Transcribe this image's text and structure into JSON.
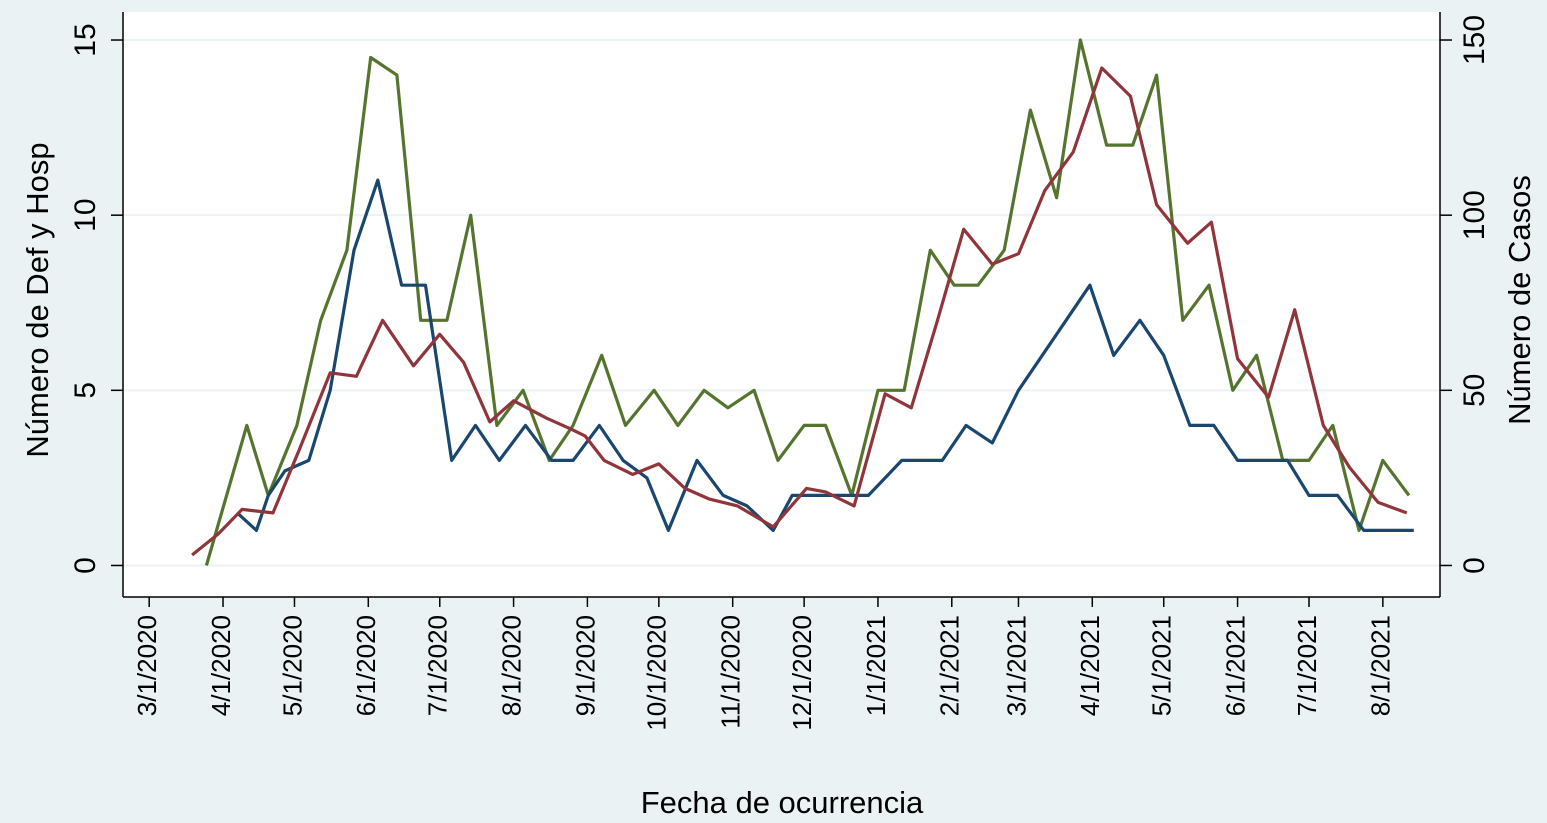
{
  "chart_data": {
    "type": "line",
    "x_label": "Fecha de ocurrencia",
    "y_label": "Número de Def y Hosp",
    "y2_label": "Número de Casos",
    "xlim": [
      "2020-02-19",
      "2021-08-25"
    ],
    "xticks": [
      {
        "value": "2020-03-01",
        "label": "3/1/2020"
      },
      {
        "value": "2020-04-01",
        "label": "4/1/2020"
      },
      {
        "value": "2020-05-01",
        "label": "5/1/2020"
      },
      {
        "value": "2020-06-01",
        "label": "6/1/2020"
      },
      {
        "value": "2020-07-01",
        "label": "7/1/2020"
      },
      {
        "value": "2020-08-01",
        "label": "8/1/2020"
      },
      {
        "value": "2020-09-01",
        "label": "9/1/2020"
      },
      {
        "value": "2020-10-01",
        "label": "10/1/2020"
      },
      {
        "value": "2020-11-01",
        "label": "11/1/2020"
      },
      {
        "value": "2020-12-01",
        "label": "12/1/2020"
      },
      {
        "value": "2021-01-01",
        "label": "1/1/2021"
      },
      {
        "value": "2021-02-01",
        "label": "2/1/2021"
      },
      {
        "value": "2021-03-01",
        "label": "3/1/2021"
      },
      {
        "value": "2021-04-01",
        "label": "4/1/2021"
      },
      {
        "value": "2021-05-01",
        "label": "5/1/2021"
      },
      {
        "value": "2021-06-01",
        "label": "6/1/2021"
      },
      {
        "value": "2021-07-01",
        "label": "7/1/2021"
      },
      {
        "value": "2021-08-01",
        "label": "8/1/2021"
      }
    ],
    "ylim": [
      -0.9,
      15.8
    ],
    "yticks": [
      0,
      5,
      10,
      15
    ],
    "y2lim": [
      -9,
      158
    ],
    "y2ticks": [
      0,
      50,
      100,
      150
    ],
    "grid": true,
    "series": [
      {
        "color": "#55752f",
        "axis": "y",
        "x": [
          "2020-03-25",
          "2020-04-11",
          "2020-04-20",
          "2020-05-02",
          "2020-05-12",
          "2020-05-23",
          "2020-06-02",
          "2020-06-13",
          "2020-06-23",
          "2020-07-04",
          "2020-07-14",
          "2020-07-25",
          "2020-08-05",
          "2020-08-16",
          "2020-08-26",
          "2020-09-07",
          "2020-09-17",
          "2020-09-29",
          "2020-10-09",
          "2020-10-20",
          "2020-10-30",
          "2020-11-10",
          "2020-11-20",
          "2020-12-01",
          "2020-12-10",
          "2020-12-21",
          "2021-01-01",
          "2021-01-12",
          "2021-01-23",
          "2021-02-02",
          "2021-02-12",
          "2021-02-23",
          "2021-03-06",
          "2021-03-17",
          "2021-03-27",
          "2021-04-07",
          "2021-04-18",
          "2021-04-28",
          "2021-05-09",
          "2021-05-20",
          "2021-05-30",
          "2021-06-09",
          "2021-06-20",
          "2021-07-01",
          "2021-07-11",
          "2021-07-22",
          "2021-08-01",
          "2021-08-12"
        ],
        "values": [
          0,
          4,
          2,
          4,
          7,
          9,
          14.5,
          14,
          7,
          7,
          10,
          4,
          5,
          3,
          4,
          6,
          4,
          5,
          4,
          5,
          4.5,
          5,
          3,
          4,
          4,
          2,
          5,
          5,
          9,
          8,
          8,
          9,
          13,
          10.5,
          15,
          12,
          12,
          14,
          7,
          8,
          5,
          6,
          3,
          3,
          4,
          1,
          3,
          2
        ]
      },
      {
        "color": "#1a476f",
        "axis": "y",
        "x": [
          "2020-04-07",
          "2020-04-15",
          "2020-04-20",
          "2020-04-27",
          "2020-05-07",
          "2020-05-16",
          "2020-05-26",
          "2020-06-05",
          "2020-06-15",
          "2020-06-25",
          "2020-07-06",
          "2020-07-16",
          "2020-07-26",
          "2020-08-06",
          "2020-08-17",
          "2020-08-26",
          "2020-09-06",
          "2020-09-16",
          "2020-09-26",
          "2020-10-05",
          "2020-10-17",
          "2020-10-28",
          "2020-11-07",
          "2020-11-18",
          "2020-11-26",
          "2020-12-06",
          "2020-12-18",
          "2020-12-28",
          "2021-01-11",
          "2021-01-28",
          "2021-02-07",
          "2021-02-18",
          "2021-03-01",
          "2021-03-11",
          "2021-03-21",
          "2021-03-31",
          "2021-04-10",
          "2021-04-21",
          "2021-05-01",
          "2021-05-12",
          "2021-05-22",
          "2021-06-01",
          "2021-06-11",
          "2021-06-22",
          "2021-07-01",
          "2021-07-13",
          "2021-07-24",
          "2021-08-04",
          "2021-08-14"
        ],
        "values": [
          1.5,
          1,
          2,
          2.7,
          3,
          5,
          9,
          11,
          8,
          8,
          3,
          4,
          3,
          4,
          3,
          3,
          4,
          3,
          2.5,
          1,
          3,
          2,
          1.7,
          1,
          2,
          2,
          2,
          2,
          3,
          3,
          4,
          3.5,
          5,
          6,
          7,
          8,
          6,
          7,
          6,
          4,
          4,
          3,
          3,
          3,
          2,
          2,
          1,
          1,
          1
        ]
      },
      {
        "color": "#90353b",
        "axis": "y2",
        "x": [
          "2020-03-19",
          "2020-03-30",
          "2020-04-09",
          "2020-04-22",
          "2020-05-03",
          "2020-05-16",
          "2020-05-27",
          "2020-06-07",
          "2020-06-20",
          "2020-07-01",
          "2020-07-11",
          "2020-07-22",
          "2020-08-01",
          "2020-08-15",
          "2020-08-25",
          "2020-08-31",
          "2020-09-08",
          "2020-09-20",
          "2020-10-01",
          "2020-10-12",
          "2020-10-22",
          "2020-11-03",
          "2020-11-18",
          "2020-12-02",
          "2020-12-10",
          "2020-12-22",
          "2021-01-04",
          "2021-01-15",
          "2021-01-26",
          "2021-02-06",
          "2021-02-18",
          "2021-03-01",
          "2021-03-12",
          "2021-03-24",
          "2021-04-05",
          "2021-04-17",
          "2021-04-28",
          "2021-05-11",
          "2021-05-21",
          "2021-06-01",
          "2021-06-14",
          "2021-06-25",
          "2021-07-07",
          "2021-07-18",
          "2021-07-30",
          "2021-08-11"
        ],
        "values": [
          3,
          9,
          16,
          15,
          33,
          55,
          54,
          70,
          57,
          66,
          58,
          41,
          47,
          42,
          39,
          37,
          30,
          26,
          29,
          22,
          19,
          17,
          11,
          22,
          21,
          17,
          49,
          45,
          70,
          96,
          86,
          89,
          107,
          118,
          142,
          134,
          103,
          92,
          98,
          59,
          48,
          73,
          40,
          28,
          18,
          15
        ]
      }
    ]
  }
}
